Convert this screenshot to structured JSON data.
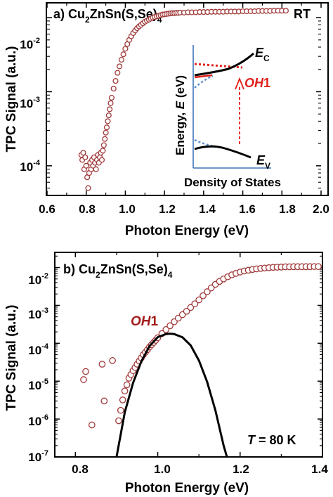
{
  "colors": {
    "marker": "#a03a3a",
    "marker_fill": "#ffffff",
    "fit_line": "#000000",
    "inset_axis": "#3f73b8",
    "inset_red": "#e0201b",
    "inset_blue": "#5b8fd0",
    "oh1_text": "#a31c1c"
  },
  "chart_data": [
    {
      "type": "scatter",
      "panel_label": "a)",
      "title": {
        "base": "Cu",
        "sub1": "2",
        "mid": "ZnSn(S,Se)",
        "sub2": "4"
      },
      "annotation": "RT",
      "xlabel": "Photon Energy (eV)",
      "ylabel": "TPC Signal (a.u.)",
      "xlim": [
        0.6,
        2.0
      ],
      "ylim_log10": [
        -4.4,
        -1.8
      ],
      "x_ticks": [
        "0.6",
        "0.8",
        "1.0",
        "1.2",
        "1.4",
        "1.6",
        "1.8",
        "2.0"
      ],
      "y_ticks": [
        {
          "base": "10",
          "exp": "-4"
        },
        {
          "base": "10",
          "exp": "-3"
        },
        {
          "base": "10",
          "exp": "-2"
        }
      ],
      "series": [
        {
          "marker": "open-circle",
          "x": [
            0.775,
            0.78,
            0.785,
            0.79,
            0.795,
            0.8,
            0.805,
            0.81,
            0.815,
            0.82,
            0.825,
            0.83,
            0.835,
            0.84,
            0.845,
            0.85,
            0.855,
            0.86,
            0.865,
            0.87,
            0.875,
            0.88,
            0.885,
            0.89,
            0.895,
            0.9,
            0.905,
            0.91,
            0.915,
            0.92,
            0.925,
            0.93,
            0.94,
            0.95,
            0.96,
            0.97,
            0.98,
            0.99,
            1.0,
            1.01,
            1.02,
            1.03,
            1.04,
            1.05,
            1.06,
            1.07,
            1.08,
            1.09,
            1.1,
            1.11,
            1.12,
            1.13,
            1.14,
            1.15,
            1.16,
            1.17,
            1.18,
            1.19,
            1.2,
            1.21,
            1.22,
            1.23,
            1.24,
            1.25,
            1.26,
            1.27,
            1.28,
            1.3,
            1.32,
            1.34,
            1.36,
            1.38,
            1.4,
            1.42,
            1.44,
            1.46,
            1.48,
            1.5,
            1.52,
            1.54,
            1.56,
            1.58,
            1.6,
            1.62,
            1.64,
            1.66,
            1.68,
            1.7,
            1.72,
            1.74,
            1.76,
            1.78,
            1.8,
            1.82
          ],
          "y": [
            0.00014,
            0.00012,
            0.00015,
            9e-05,
            0.00013,
            0.0001,
            7e-05,
            5e-05,
            8e-05,
            0.00011,
            9e-05,
            0.00012,
            0.0001,
            0.00013,
            0.00011,
            9e-05,
            0.00012,
            0.00014,
            0.00011,
            0.00013,
            0.00015,
            0.00012,
            0.00016,
            0.00019,
            0.00023,
            0.00028,
            0.00033,
            0.0004,
            0.00048,
            0.00058,
            0.0007,
            0.00083,
            0.0011,
            0.0014,
            0.0018,
            0.0022,
            0.0027,
            0.0032,
            0.0038,
            0.0044,
            0.005,
            0.0056,
            0.0062,
            0.0067,
            0.0072,
            0.0076,
            0.008,
            0.0084,
            0.0088,
            0.0091,
            0.0094,
            0.0097,
            0.01,
            0.0102,
            0.0104,
            0.0106,
            0.0108,
            0.011,
            0.0111,
            0.0112,
            0.0113,
            0.0114,
            0.0115,
            0.0115,
            0.0116,
            0.0116,
            0.0117,
            0.0117,
            0.0118,
            0.0118,
            0.0118,
            0.0119,
            0.0119,
            0.0119,
            0.012,
            0.012,
            0.012,
            0.012,
            0.0121,
            0.0121,
            0.0121,
            0.0121,
            0.0122,
            0.0122,
            0.0122,
            0.0122,
            0.0123,
            0.0123,
            0.0123,
            0.0123,
            0.0124,
            0.0124,
            0.0124,
            0.0124
          ]
        }
      ],
      "inset": {
        "ylabel_prefix": "Energy, ",
        "ylabel_italic": "E",
        "ylabel_suffix": " (eV)",
        "xlabel": "Density of States",
        "ec_label": {
          "base": "E",
          "sub": "C"
        },
        "ev_label": {
          "base": "E",
          "sub": "V"
        },
        "transition_label": {
          "italic": "OH",
          "plain": "1"
        }
      }
    },
    {
      "type": "scatter",
      "panel_label": "b)",
      "title": {
        "base": "Cu",
        "sub1": "2",
        "mid": "ZnSn(S,Se)",
        "sub2": "4"
      },
      "annotation": {
        "italic": "T",
        "plain": " = 80 K"
      },
      "curve_label": {
        "italic": "OH",
        "plain": "1"
      },
      "xlabel": "Photon Energy (eV)",
      "ylabel": "TPC Signal (a.u.)",
      "xlim": [
        0.75,
        1.4
      ],
      "ylim_log10": [
        -7,
        -1.6
      ],
      "x_ticks": [
        "0.8",
        "1.0",
        "1.2",
        "1.4"
      ],
      "y_ticks": [
        {
          "base": "10",
          "exp": "-7"
        },
        {
          "base": "10",
          "exp": "-6"
        },
        {
          "base": "10",
          "exp": "-5"
        },
        {
          "base": "10",
          "exp": "-4"
        },
        {
          "base": "10",
          "exp": "-3"
        },
        {
          "base": "10",
          "exp": "-2"
        }
      ],
      "series": [
        {
          "marker": "open-circle",
          "x": [
            0.82,
            0.825,
            0.84,
            0.865,
            0.87,
            0.89,
            0.905,
            0.91,
            0.915,
            0.92,
            0.925,
            0.93,
            0.935,
            0.94,
            0.945,
            0.95,
            0.955,
            0.96,
            0.965,
            0.97,
            0.975,
            0.98,
            0.985,
            0.99,
            0.995,
            1.0,
            1.01,
            1.02,
            1.03,
            1.04,
            1.05,
            1.06,
            1.07,
            1.08,
            1.09,
            1.1,
            1.11,
            1.12,
            1.13,
            1.14,
            1.15,
            1.16,
            1.17,
            1.18,
            1.19,
            1.2,
            1.21,
            1.22,
            1.23,
            1.24,
            1.25,
            1.26,
            1.27,
            1.28,
            1.29,
            1.3,
            1.31,
            1.32,
            1.33,
            1.34,
            1.35,
            1.36,
            1.37,
            1.38,
            1.39
          ],
          "y": [
            1.1e-05,
            1.8e-05,
            7e-07,
            2.8e-05,
            3e-06,
            3.5e-05,
            9e-07,
            1.7e-06,
            3.2e-06,
            5.5e-06,
            8e-06,
            1.2e-05,
            1.5e-05,
            1.9e-05,
            2.3e-05,
            2.8e-05,
            3.4e-05,
            4.1e-05,
            5e-05,
            5.8e-05,
            6.8e-05,
            8e-05,
            9.2e-05,
            0.000105,
            0.00012,
            0.00014,
            0.00018,
            0.00023,
            0.00029,
            0.00037,
            0.00046,
            0.00057,
            0.0007,
            0.00088,
            0.0011,
            0.0014,
            0.0018,
            0.0023,
            0.0029,
            0.0036,
            0.0043,
            0.005,
            0.0057,
            0.0064,
            0.007,
            0.0076,
            0.0081,
            0.0085,
            0.0089,
            0.0092,
            0.0095,
            0.0097,
            0.0099,
            0.0101,
            0.0102,
            0.0103,
            0.0104,
            0.0104,
            0.0105,
            0.0105,
            0.0105,
            0.0105,
            0.0105,
            0.0106,
            0.0106
          ]
        },
        {
          "name": "OH1",
          "line": "gaussian",
          "x": [
            0.9,
            0.92,
            0.94,
            0.96,
            0.98,
            1.0,
            1.02,
            1.03,
            1.04,
            1.06,
            1.08,
            1.1,
            1.12,
            1.14,
            1.16,
            1.168
          ],
          "y": [
            1e-07,
            1.5e-06,
            9e-06,
            3.3e-05,
            8.4e-05,
            0.000145,
            0.000175,
            0.00018,
            0.000175,
            0.000144,
            8.8e-05,
            3.5e-05,
            9.5e-06,
            1.7e-06,
            2e-07,
            1e-07
          ]
        }
      ]
    }
  ]
}
